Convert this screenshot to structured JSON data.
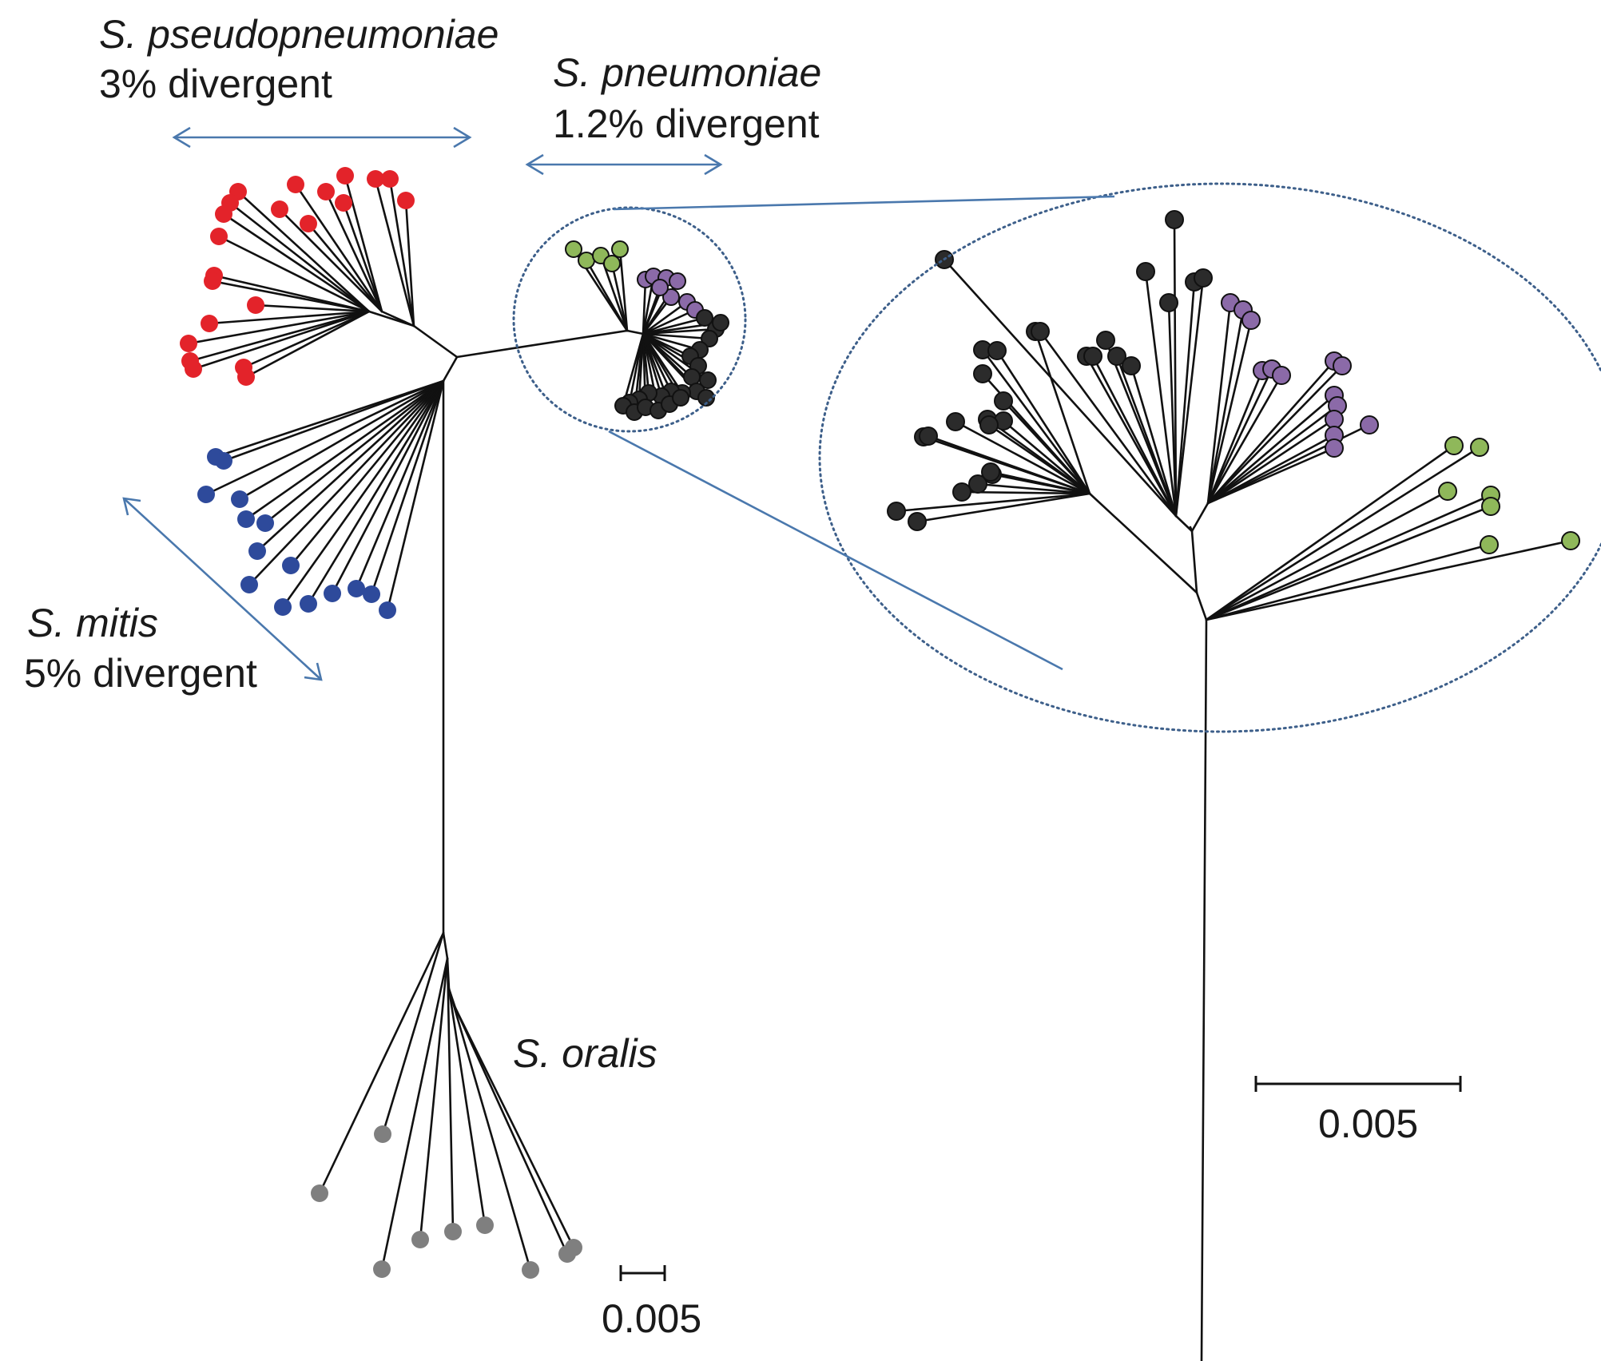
{
  "annotations": {
    "pseudopneumoniae": {
      "species": "S. pseudopneumoniae",
      "divergence": "3% divergent"
    },
    "pneumoniae": {
      "species": "S. pneumoniae",
      "divergence": "1.2% divergent"
    },
    "mitis": {
      "species": "S. mitis",
      "divergence": "5% divergent"
    },
    "oralis": {
      "species": "S. oralis"
    }
  },
  "scale_bars": {
    "main_tree": {
      "label": "0.005"
    },
    "inset_tree": {
      "label": "0.005"
    }
  },
  "colors": {
    "s_pseudopneumoniae": "#e3232a",
    "s_mitis": "#2e4a9b",
    "s_oralis": "#7f7f7f",
    "pneumoniae_black": "#2b2b2b",
    "pneumoniae_purple": "#8b6aa8",
    "pneumoniae_green": "#8fb85a",
    "annotation_arrow": "#4a78ad",
    "branch": "#111111"
  }
}
